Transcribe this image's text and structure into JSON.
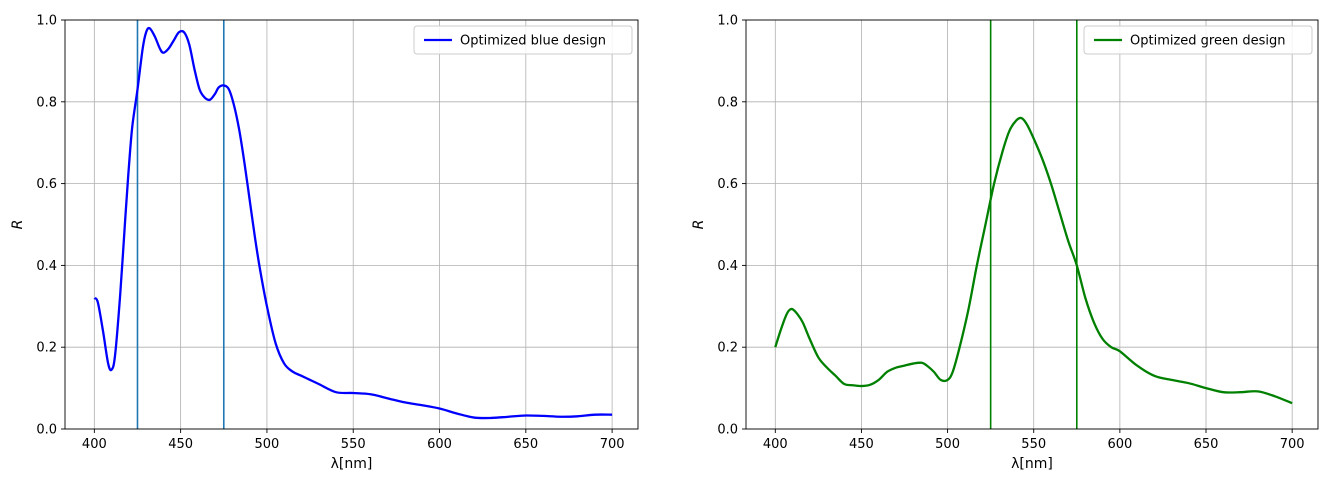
{
  "chart_data": [
    {
      "type": "line",
      "title": "",
      "xlabel": "λ[nm]",
      "ylabel": "R",
      "xlim": [
        383,
        715
      ],
      "ylim": [
        0,
        1
      ],
      "xticks": [
        400,
        450,
        500,
        550,
        600,
        650,
        700
      ],
      "xtick_labels": [
        "400",
        "450",
        "500",
        "550",
        "600",
        "650",
        "700"
      ],
      "yticks": [
        0,
        0.2,
        0.4,
        0.6,
        0.8,
        1.0
      ],
      "ytick_labels": [
        "0.0",
        "0.2",
        "0.4",
        "0.6",
        "0.8",
        "1.0"
      ],
      "grid": true,
      "legend_position": "upper-right",
      "series": [
        {
          "name": "Optimized blue design",
          "color": "#0000ff",
          "x": [
            400,
            402,
            405,
            408,
            410,
            412,
            415,
            418,
            420,
            422,
            425,
            428,
            430,
            432,
            435,
            438,
            440,
            443,
            446,
            449,
            452,
            455,
            458,
            461,
            464,
            467,
            470,
            472,
            475,
            478,
            481,
            484,
            487,
            490,
            493,
            496,
            500,
            505,
            510,
            515,
            520,
            525,
            530,
            540,
            550,
            560,
            570,
            580,
            590,
            600,
            610,
            620,
            630,
            640,
            650,
            660,
            670,
            680,
            690,
            700
          ],
          "y": [
            0.32,
            0.31,
            0.24,
            0.16,
            0.145,
            0.18,
            0.33,
            0.52,
            0.64,
            0.74,
            0.83,
            0.93,
            0.97,
            0.98,
            0.96,
            0.93,
            0.92,
            0.93,
            0.95,
            0.97,
            0.97,
            0.94,
            0.88,
            0.83,
            0.81,
            0.805,
            0.82,
            0.835,
            0.84,
            0.83,
            0.79,
            0.73,
            0.65,
            0.56,
            0.47,
            0.39,
            0.3,
            0.21,
            0.16,
            0.14,
            0.13,
            0.12,
            0.11,
            0.09,
            0.088,
            0.085,
            0.075,
            0.065,
            0.058,
            0.05,
            0.038,
            0.028,
            0.027,
            0.03,
            0.033,
            0.032,
            0.03,
            0.031,
            0.035,
            0.035
          ]
        }
      ],
      "vlines": [
        {
          "x": 425,
          "color": "#1f77b4"
        },
        {
          "x": 475,
          "color": "#1f77b4"
        }
      ]
    },
    {
      "type": "line",
      "title": "",
      "xlabel": "λ[nm]",
      "ylabel": "R",
      "xlim": [
        383,
        715
      ],
      "ylim": [
        0,
        1
      ],
      "xticks": [
        400,
        450,
        500,
        550,
        600,
        650,
        700
      ],
      "xtick_labels": [
        "400",
        "450",
        "500",
        "550",
        "600",
        "650",
        "700"
      ],
      "yticks": [
        0,
        0.2,
        0.4,
        0.6,
        0.8,
        1.0
      ],
      "ytick_labels": [
        "0.0",
        "0.2",
        "0.4",
        "0.6",
        "0.8",
        "1.0"
      ],
      "grid": true,
      "legend_position": "upper-right",
      "series": [
        {
          "name": "Optimized green design",
          "color": "#008000",
          "x": [
            400,
            403,
            406,
            408,
            410,
            413,
            416,
            420,
            425,
            430,
            435,
            440,
            445,
            450,
            455,
            460,
            465,
            470,
            475,
            480,
            485,
            488,
            492,
            496,
            500,
            503,
            507,
            512,
            517,
            522,
            527,
            532,
            536,
            540,
            543,
            546,
            550,
            555,
            560,
            565,
            570,
            575,
            580,
            585,
            590,
            595,
            600,
            610,
            620,
            630,
            640,
            650,
            660,
            670,
            680,
            690,
            700
          ],
          "y": [
            0.2,
            0.24,
            0.275,
            0.29,
            0.293,
            0.28,
            0.26,
            0.22,
            0.175,
            0.15,
            0.13,
            0.11,
            0.107,
            0.105,
            0.108,
            0.12,
            0.14,
            0.15,
            0.155,
            0.16,
            0.162,
            0.155,
            0.14,
            0.12,
            0.12,
            0.14,
            0.2,
            0.29,
            0.4,
            0.5,
            0.6,
            0.68,
            0.73,
            0.755,
            0.76,
            0.745,
            0.71,
            0.66,
            0.6,
            0.53,
            0.46,
            0.4,
            0.32,
            0.26,
            0.22,
            0.2,
            0.19,
            0.155,
            0.13,
            0.12,
            0.112,
            0.1,
            0.09,
            0.09,
            0.092,
            0.08,
            0.063
          ]
        }
      ],
      "vlines": [
        {
          "x": 525,
          "color": "#008000"
        },
        {
          "x": 575,
          "color": "#008000"
        }
      ]
    }
  ]
}
